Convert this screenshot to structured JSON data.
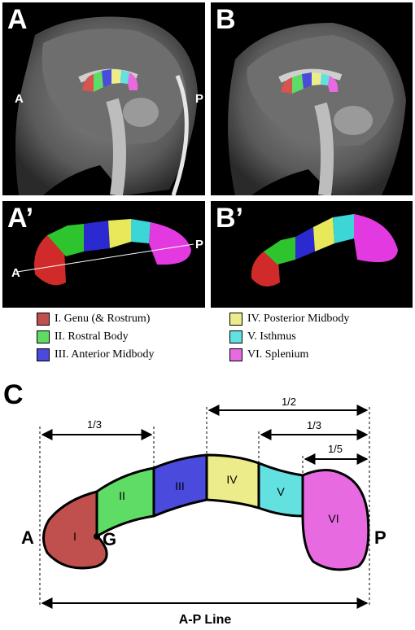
{
  "panels": {
    "A": {
      "label": "A",
      "left": "A",
      "right": "P"
    },
    "B": {
      "label": "B"
    },
    "A2": {
      "label": "A’",
      "left": "A",
      "right": "P"
    },
    "B2": {
      "label": "B’"
    }
  },
  "legend": [
    {
      "label": "I. Genu (& Rostrum)",
      "color": "#c0504d"
    },
    {
      "label": "II. Rostral Body",
      "color": "#5fdc66"
    },
    {
      "label": "III. Anterior Midbody",
      "color": "#4a4adc"
    },
    {
      "label": "IV. Posterior Midbody",
      "color": "#ecec8a"
    },
    {
      "label": "V. Isthmus",
      "color": "#63e0e0"
    },
    {
      "label": "VI. Splenium",
      "color": "#e86ae0"
    }
  ],
  "diagram": {
    "label": "C",
    "regions": [
      "I",
      "II",
      "III",
      "IV",
      "V",
      "VI"
    ],
    "fractions": [
      "1/3",
      "1/2",
      "1/3",
      "1/5"
    ],
    "anterior": "A",
    "posterior": "P",
    "genu_point": "G",
    "axis_label": "A-P Line"
  }
}
